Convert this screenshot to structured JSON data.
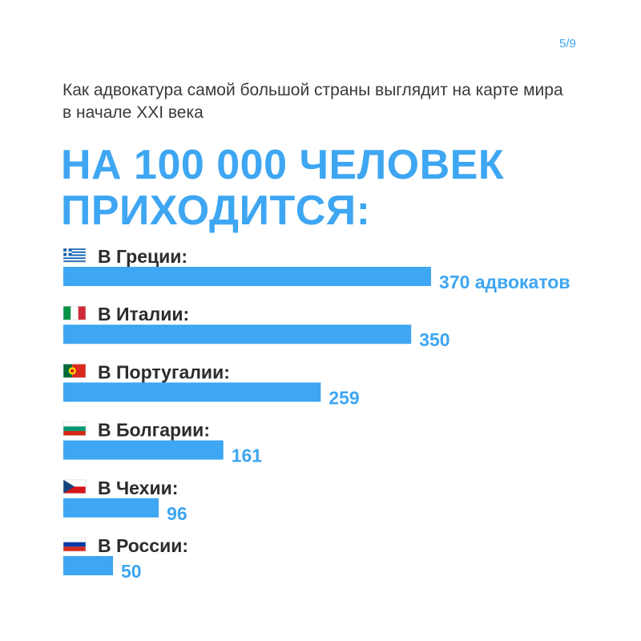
{
  "page_number": "5/9",
  "subtitle": "Как адвокатура самой большой страны выглядит на карте мира в начале XXI века",
  "headline": "НА 100 000 ЧЕЛОВЕК ПРИХОДИТСЯ:",
  "colors": {
    "accent": "#3ea6f2",
    "text": "#2c2c2c"
  },
  "chart_data": {
    "type": "bar",
    "orientation": "horizontal",
    "title": "НА 100 000 ЧЕЛОВЕК ПРИХОДИТСЯ:",
    "categories": [
      "В Греции:",
      "В Италии:",
      "В Португалии:",
      "В Болгарии:",
      "В Чехии:",
      "В России:"
    ],
    "values": [
      370,
      350,
      259,
      161,
      96,
      50
    ],
    "value_labels": [
      "370 адвокатов",
      "350",
      "259",
      "161",
      "96",
      "50"
    ],
    "flags": [
      "greece-flag",
      "italy-flag",
      "portugal-flag",
      "bulgaria-flag",
      "czech-flag",
      "russia-flag"
    ],
    "xlim": [
      0,
      370
    ],
    "grid": false,
    "legend": "none"
  }
}
